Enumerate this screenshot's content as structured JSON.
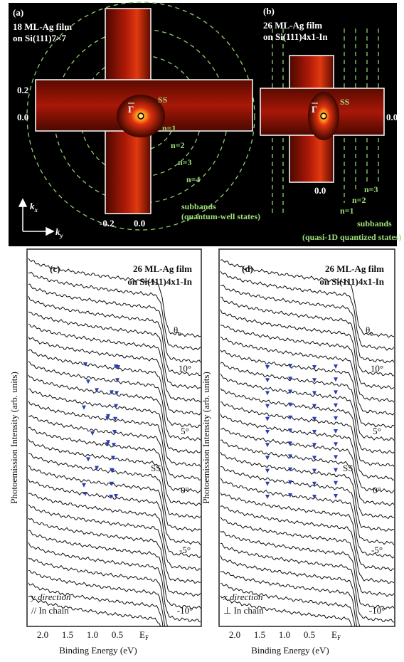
{
  "panel_a": {
    "label": "(a)",
    "title": [
      "18 ML-Ag film",
      "on Si(111)7×7"
    ],
    "y_ticks": [
      "0.2",
      "0.0"
    ],
    "x_ticks": [
      "-0.2",
      "0.0"
    ],
    "gamma": "Γ",
    "ss": "SS",
    "n_labels": [
      "n=1",
      "n=2",
      "n=3",
      "n=4"
    ],
    "subbands": "subbands",
    "note": "(quantum-well states)",
    "axis_x": {
      "main": "k",
      "sub": "x"
    },
    "axis_y": {
      "main": "k",
      "sub": "y"
    }
  },
  "panel_b": {
    "label": "(b)",
    "title": [
      "26 ML-Ag film",
      "on Si(111)4x1-In"
    ],
    "y_tick": "0.0",
    "x_tick": "0.0",
    "gamma": "Γ",
    "ss": "SS",
    "n_labels": [
      "n=1",
      "n=2",
      "n=3"
    ],
    "subbands": "subbands",
    "note": "(quasi-1D quantized states)"
  },
  "panel_c": {
    "label": "(c)",
    "title": [
      "26 ML-Ag film",
      "on Si(111)4x1-In"
    ],
    "theta": {
      "main": "θ",
      "sub": "e"
    },
    "angles": [
      "10°",
      "5°",
      "0°",
      "-5°",
      "-10°"
    ],
    "ss": "SS",
    "direction": "y direction",
    "chain": "// In chain",
    "x_ticks": [
      "2.0",
      "1.5",
      "1.0",
      "0.5"
    ],
    "ef": {
      "main": "E",
      "sub": "F"
    },
    "x_label": "Binding Energy (eV)",
    "y_label": "Photoemission Intensity (arb. units)"
  },
  "panel_d": {
    "label": "(d)",
    "title": [
      "26 ML-Ag film",
      "on Si(111)4x1-In"
    ],
    "theta": {
      "main": "θ",
      "sub": "e"
    },
    "angles": [
      "10°",
      "5°",
      "0°",
      "-5°",
      "-10°"
    ],
    "ss": "SS",
    "direction": "x direction",
    "chain": "⊥ In chain",
    "x_ticks": [
      "2.0",
      "1.5",
      "1.0",
      "0.5"
    ],
    "ef": {
      "main": "E",
      "sub": "F"
    },
    "x_label": "Binding Energy (eV)",
    "y_label": "Photoemission Intensity (arb. units)"
  }
}
